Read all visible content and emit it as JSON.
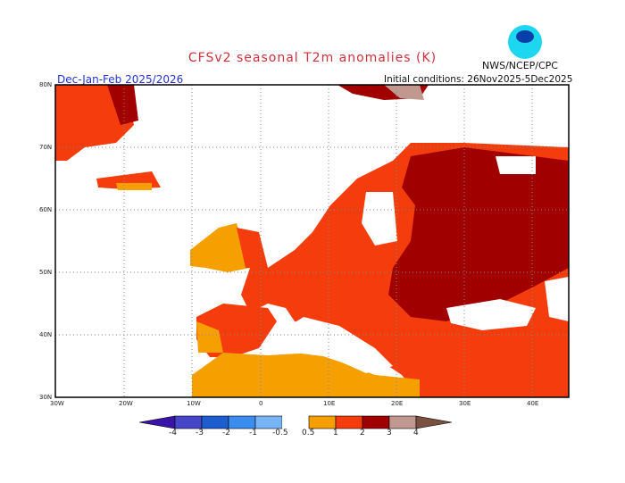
{
  "title": "CFSv2 seasonal T2m anomalies (K)",
  "agency": "NWS/NCEP/CPC",
  "logo_text": "NOAA",
  "period": "Dec-Jan-Feb 2025/2026",
  "initial_conditions": "Initial conditions: 26Nov2025-5Dec2025",
  "lat_labels": [
    "80N",
    "70N",
    "60N",
    "50N",
    "40N",
    "30N"
  ],
  "lon_labels": [
    "30W",
    "20W",
    "10W",
    "0",
    "10E",
    "20E",
    "30E",
    "40E"
  ],
  "colorbar": {
    "labels": [
      "-4",
      "-3",
      "-2",
      "-1",
      "-0.5",
      "0.5",
      "1",
      "2",
      "3",
      "4"
    ],
    "colors": [
      "#3a14a8",
      "#4646c8",
      "#1c5ed0",
      "#3a8cee",
      "#78b4f5",
      "#ffffff",
      "#f5a000",
      "#f53c0c",
      "#a00000",
      "#c09890",
      "#7a5040"
    ]
  },
  "map_colors": {
    "c05": "#f5a000",
    "c1": "#f53c0c",
    "c2": "#a00000",
    "c3": "#c09890"
  }
}
